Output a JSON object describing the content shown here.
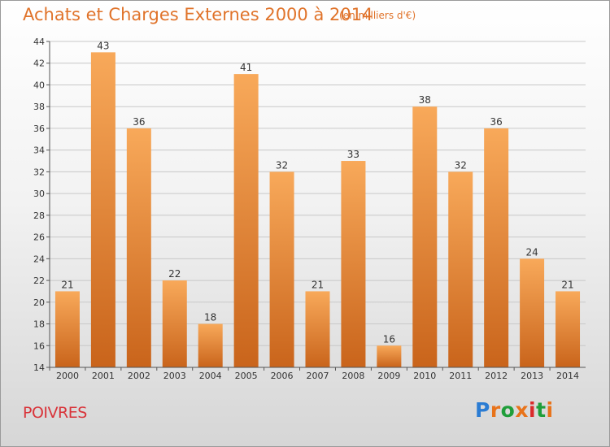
{
  "title": "Achats et Charges Externes 2000 à 2014",
  "unit": "(en milliers d'€)",
  "place": "POIVRES",
  "logo": {
    "text": "Proxiti",
    "colors": [
      "#2b7cd3",
      "#e8731a",
      "#1f9e3a",
      "#e8731a",
      "#d92b2b",
      "#1f9e3a",
      "#e8731a"
    ]
  },
  "colors": {
    "bar_top": "#f8a95a",
    "bar_bottom": "#c9641b",
    "title": "#e0732a",
    "place": "#d9343a"
  },
  "chart_data": {
    "type": "bar",
    "title": "Achats et Charges Externes 2000 à 2014",
    "categories": [
      "2000",
      "2001",
      "2002",
      "2003",
      "2004",
      "2005",
      "2006",
      "2007",
      "2008",
      "2009",
      "2010",
      "2011",
      "2012",
      "2013",
      "2014"
    ],
    "values": [
      21,
      43,
      36,
      22,
      18,
      41,
      32,
      21,
      33,
      16,
      38,
      32,
      36,
      24,
      21
    ],
    "ylim": [
      14,
      44
    ],
    "yticks": [
      14,
      16,
      18,
      20,
      22,
      24,
      26,
      28,
      30,
      32,
      34,
      36,
      38,
      40,
      42,
      44
    ],
    "grid": true,
    "data_labels": true
  }
}
